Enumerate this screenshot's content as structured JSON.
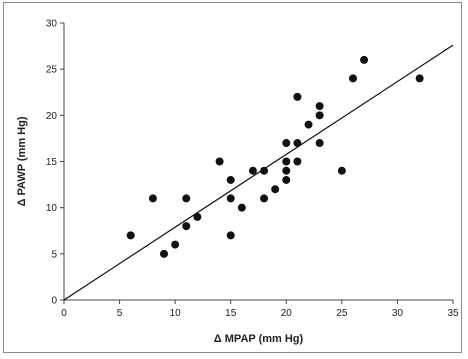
{
  "chart_data": {
    "type": "scatter",
    "title": "",
    "xlabel": "Δ MPAP (mm Hg)",
    "ylabel": "Δ PAWP (mm Hg)",
    "xlim": [
      0,
      35
    ],
    "ylim": [
      0,
      30
    ],
    "xticks": [
      0,
      5,
      10,
      15,
      20,
      25,
      30,
      35
    ],
    "yticks": [
      0,
      5,
      10,
      15,
      20,
      25,
      30
    ],
    "grid": false,
    "legend": "none",
    "marker_color": "#111111",
    "line_color": "#111111",
    "points": [
      {
        "x": 6,
        "y": 7
      },
      {
        "x": 8,
        "y": 11
      },
      {
        "x": 9,
        "y": 5
      },
      {
        "x": 10,
        "y": 6
      },
      {
        "x": 11,
        "y": 8
      },
      {
        "x": 11,
        "y": 11
      },
      {
        "x": 12,
        "y": 9
      },
      {
        "x": 14,
        "y": 15
      },
      {
        "x": 15,
        "y": 7
      },
      {
        "x": 15,
        "y": 11
      },
      {
        "x": 15,
        "y": 13
      },
      {
        "x": 16,
        "y": 10
      },
      {
        "x": 17,
        "y": 14
      },
      {
        "x": 18,
        "y": 11
      },
      {
        "x": 18,
        "y": 14
      },
      {
        "x": 19,
        "y": 12
      },
      {
        "x": 20,
        "y": 13
      },
      {
        "x": 20,
        "y": 14
      },
      {
        "x": 20,
        "y": 15
      },
      {
        "x": 20,
        "y": 17
      },
      {
        "x": 21,
        "y": 15
      },
      {
        "x": 21,
        "y": 17
      },
      {
        "x": 21,
        "y": 22
      },
      {
        "x": 22,
        "y": 19
      },
      {
        "x": 23,
        "y": 17
      },
      {
        "x": 23,
        "y": 20
      },
      {
        "x": 23,
        "y": 21
      },
      {
        "x": 25,
        "y": 14
      },
      {
        "x": 26,
        "y": 24
      },
      {
        "x": 27,
        "y": 26
      },
      {
        "x": 32,
        "y": 24
      }
    ],
    "regression_line": {
      "x": [
        0,
        35
      ],
      "y": [
        0,
        27.6
      ]
    }
  }
}
